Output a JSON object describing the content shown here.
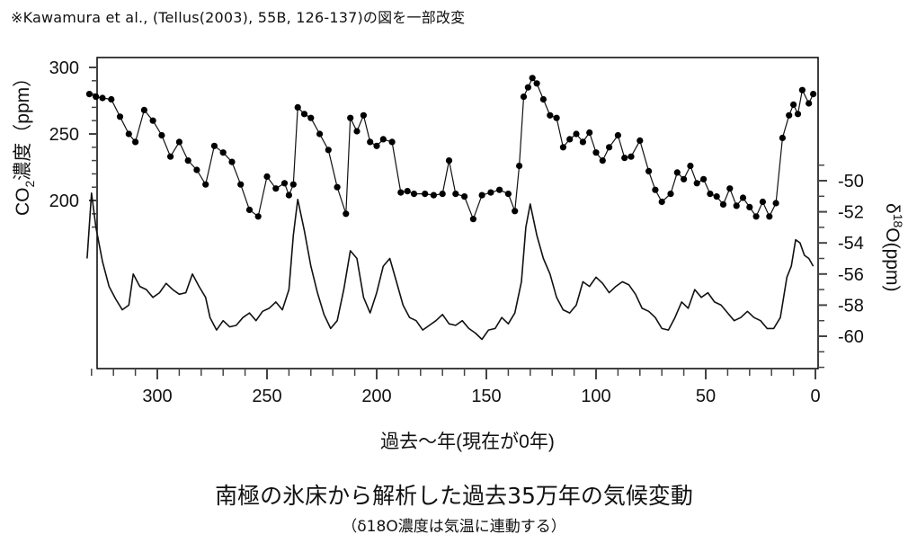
{
  "source_note": "※Kawamura et al., (Tellus(2003), 55B, 126-137)の図を一部改変",
  "caption": {
    "title": "南極の氷床から解析した過去35万年の気候変動",
    "subtitle": "（δ18O濃度は気温に連動する）"
  },
  "chart_data": {
    "type": "line",
    "xlabel": "過去～年(現在が0年)",
    "x_unit_note": "thousand years before present",
    "xlim": [
      335,
      0
    ],
    "x_ticks": [
      300,
      250,
      200,
      150,
      100,
      50,
      0
    ],
    "left_axis": {
      "label_main": "CO",
      "label_sub": "2",
      "label_rest": "濃度（ppm）",
      "ticks": [
        300,
        250,
        200
      ]
    },
    "right_axis": {
      "label_main": "δ",
      "label_sup": "18",
      "label_rest": "O(ppm)",
      "ticks": [
        -50,
        -52,
        -54,
        -56,
        -58,
        -60
      ]
    },
    "series": [
      {
        "key": "co2",
        "axis": "left",
        "markers": true,
        "x": [
          331,
          328,
          325,
          321,
          317,
          313,
          310,
          306,
          302,
          298,
          294,
          290,
          286,
          282,
          278,
          274,
          270,
          266,
          262,
          258,
          254,
          250,
          246,
          242,
          240,
          238,
          236,
          233,
          230,
          226,
          222,
          218,
          214,
          212,
          209,
          206,
          203,
          200,
          197,
          193,
          189,
          186,
          183,
          178,
          174,
          170,
          167,
          164,
          160,
          156,
          152,
          148,
          144,
          140,
          137,
          135,
          133,
          131,
          129,
          127,
          124,
          121,
          118,
          115,
          112,
          109,
          106,
          103,
          100,
          97,
          94,
          90,
          87,
          84,
          80,
          76,
          73,
          70,
          66,
          63,
          60,
          57,
          54,
          51,
          48,
          45,
          42,
          39,
          36,
          33,
          30,
          27,
          24,
          21,
          18,
          15,
          12,
          10,
          8,
          6,
          3,
          1
        ],
        "y": [
          280,
          278,
          277,
          276,
          263,
          250,
          244,
          268,
          260,
          249,
          233,
          244,
          230,
          223,
          212,
          241,
          236,
          229,
          212,
          193,
          188,
          218,
          209,
          213,
          204,
          212,
          270,
          265,
          262,
          250,
          238,
          210,
          190,
          262,
          252,
          264,
          244,
          241,
          246,
          244,
          206,
          207,
          205,
          205,
          204,
          205,
          230,
          205,
          203,
          186,
          204,
          206,
          208,
          205,
          192,
          226,
          278,
          285,
          292,
          288,
          276,
          264,
          262,
          240,
          246,
          250,
          244,
          251,
          236,
          230,
          240,
          249,
          232,
          233,
          245,
          222,
          208,
          199,
          205,
          221,
          216,
          226,
          213,
          216,
          205,
          203,
          197,
          209,
          196,
          202,
          195,
          188,
          199,
          188,
          198,
          247,
          264,
          272,
          265,
          283,
          273,
          280
        ]
      },
      {
        "key": "d18o",
        "axis": "right",
        "markers": false,
        "x": [
          332,
          330,
          328,
          325,
          322,
          319,
          316,
          313,
          311,
          308,
          305,
          302,
          299,
          296,
          293,
          290,
          287,
          284,
          281,
          278,
          276,
          273,
          270,
          267,
          264,
          261,
          258,
          255,
          252,
          249,
          246,
          243,
          240,
          238,
          236,
          233,
          230,
          227,
          224,
          221,
          218,
          215,
          212,
          209,
          206,
          203,
          200,
          197,
          194,
          191,
          188,
          185,
          182,
          179,
          176,
          173,
          170,
          167,
          164,
          161,
          158,
          155,
          152,
          149,
          146,
          143,
          140,
          137,
          134,
          132,
          130,
          127,
          124,
          121,
          118,
          115,
          112,
          109,
          106,
          103,
          100,
          97,
          94,
          91,
          88,
          85,
          82,
          79,
          76,
          73,
          70,
          67,
          64,
          61,
          58,
          55,
          52,
          49,
          46,
          43,
          40,
          37,
          34,
          31,
          28,
          25,
          22,
          19,
          16,
          13,
          11,
          9,
          7,
          5,
          3,
          1
        ],
        "y": [
          -55.0,
          -50.8,
          -53.0,
          -55.2,
          -56.8,
          -57.6,
          -58.3,
          -58.0,
          -56.0,
          -56.8,
          -57.0,
          -57.5,
          -57.2,
          -56.6,
          -57.0,
          -57.3,
          -57.2,
          -56.0,
          -56.8,
          -57.5,
          -58.8,
          -59.6,
          -59.0,
          -59.4,
          -59.3,
          -58.8,
          -58.5,
          -59.0,
          -58.4,
          -58.2,
          -57.8,
          -58.3,
          -57.0,
          -53.5,
          -51.2,
          -53.2,
          -55.5,
          -57.2,
          -58.6,
          -59.5,
          -59.0,
          -57.0,
          -54.5,
          -55.0,
          -57.5,
          -58.5,
          -57.2,
          -55.5,
          -55.0,
          -56.5,
          -58.0,
          -58.8,
          -59.0,
          -59.6,
          -59.3,
          -59.0,
          -58.6,
          -59.2,
          -59.3,
          -59.0,
          -59.5,
          -59.8,
          -60.2,
          -59.6,
          -59.5,
          -58.8,
          -59.2,
          -58.5,
          -56.5,
          -53.0,
          -51.5,
          -53.5,
          -55.0,
          -56.0,
          -57.5,
          -58.3,
          -58.5,
          -58.0,
          -56.5,
          -56.8,
          -56.2,
          -56.6,
          -57.2,
          -56.8,
          -56.5,
          -56.7,
          -57.3,
          -58.2,
          -58.4,
          -58.8,
          -59.5,
          -59.6,
          -58.8,
          -57.8,
          -58.2,
          -57.0,
          -57.5,
          -57.2,
          -57.8,
          -58.0,
          -58.5,
          -59.0,
          -58.8,
          -58.4,
          -58.8,
          -59.0,
          -59.5,
          -59.5,
          -58.8,
          -56.2,
          -55.5,
          -53.8,
          -54.0,
          -54.8,
          -55.0,
          -55.5
        ]
      }
    ],
    "grid": false,
    "legend": "none"
  }
}
